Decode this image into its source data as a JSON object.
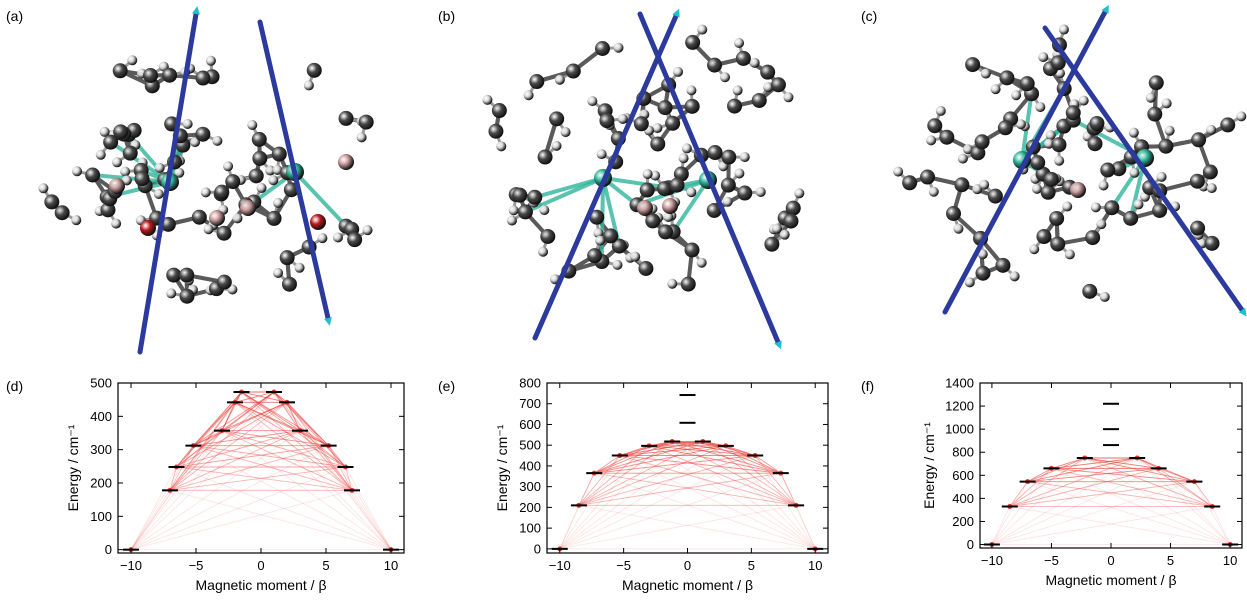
{
  "panels": {
    "a": "(a)",
    "b": "(b)",
    "c": "(c)",
    "d": "(d)",
    "e": "(e)",
    "f": "(f)"
  },
  "colors": {
    "carbon": "#4a4a4a",
    "hydrogen": "#d8d8d8",
    "metal": "#2fb59a",
    "boron": "#c99a9a",
    "oxygen": "#c0181c",
    "axis_vector": "#2b3a9c",
    "vector_tip": "#20c0c8",
    "level": "#000000",
    "transition": "#e8332d"
  },
  "chart_data": [
    {
      "type": "line",
      "panel": "(d)",
      "xlabel": "Magnetic moment / β",
      "ylabel": "Energy / cm⁻¹",
      "xlim": [
        -11,
        11
      ],
      "ylim": [
        -10,
        500
      ],
      "xticks": [
        -10,
        -5,
        0,
        5,
        10
      ],
      "yticks": [
        0,
        100,
        200,
        300,
        400,
        500
      ],
      "levels": [
        [
          -10,
          0
        ],
        [
          10,
          0
        ],
        [
          -7,
          178
        ],
        [
          7,
          178
        ],
        [
          -6.5,
          248
        ],
        [
          6.5,
          248
        ],
        [
          -5.2,
          312
        ],
        [
          5.2,
          312
        ],
        [
          -3,
          357
        ],
        [
          3,
          357
        ],
        [
          -2,
          442
        ],
        [
          2,
          442
        ],
        [
          -1.5,
          473
        ],
        [
          1,
          473
        ]
      ]
    },
    {
      "type": "line",
      "panel": "(e)",
      "xlabel": "Magnetic moment / β",
      "ylabel": "Energy / cm⁻¹",
      "xlim": [
        -11,
        11
      ],
      "ylim": [
        -20,
        800
      ],
      "xticks": [
        -10,
        -5,
        0,
        5,
        10
      ],
      "yticks": [
        0,
        100,
        200,
        300,
        400,
        500,
        600,
        700,
        800
      ],
      "levels": [
        [
          -10,
          0
        ],
        [
          10,
          0
        ],
        [
          -8.5,
          210
        ],
        [
          8.5,
          210
        ],
        [
          -7.3,
          365
        ],
        [
          7.3,
          365
        ],
        [
          -5.3,
          450
        ],
        [
          5.3,
          450
        ],
        [
          -3,
          497
        ],
        [
          3,
          497
        ],
        [
          -1.2,
          518
        ],
        [
          1.2,
          518
        ],
        [
          0,
          608
        ],
        [
          0,
          742
        ]
      ]
    },
    {
      "type": "line",
      "panel": "(f)",
      "xlabel": "Magnetic moment / β",
      "ylabel": "Energy / cm⁻¹",
      "xlim": [
        -11,
        11
      ],
      "ylim": [
        -30,
        1400
      ],
      "xticks": [
        -10,
        -5,
        0,
        5,
        10
      ],
      "yticks": [
        0,
        200,
        400,
        600,
        800,
        1000,
        1200,
        1400
      ],
      "levels": [
        [
          -10,
          0
        ],
        [
          10,
          0
        ],
        [
          -8.5,
          330
        ],
        [
          8.5,
          330
        ],
        [
          -7,
          545
        ],
        [
          7,
          545
        ],
        [
          -5,
          660
        ],
        [
          4,
          660
        ],
        [
          -2.2,
          750
        ],
        [
          2.2,
          750
        ],
        [
          0,
          862
        ],
        [
          0,
          1000
        ],
        [
          0,
          1220
        ]
      ]
    }
  ]
}
